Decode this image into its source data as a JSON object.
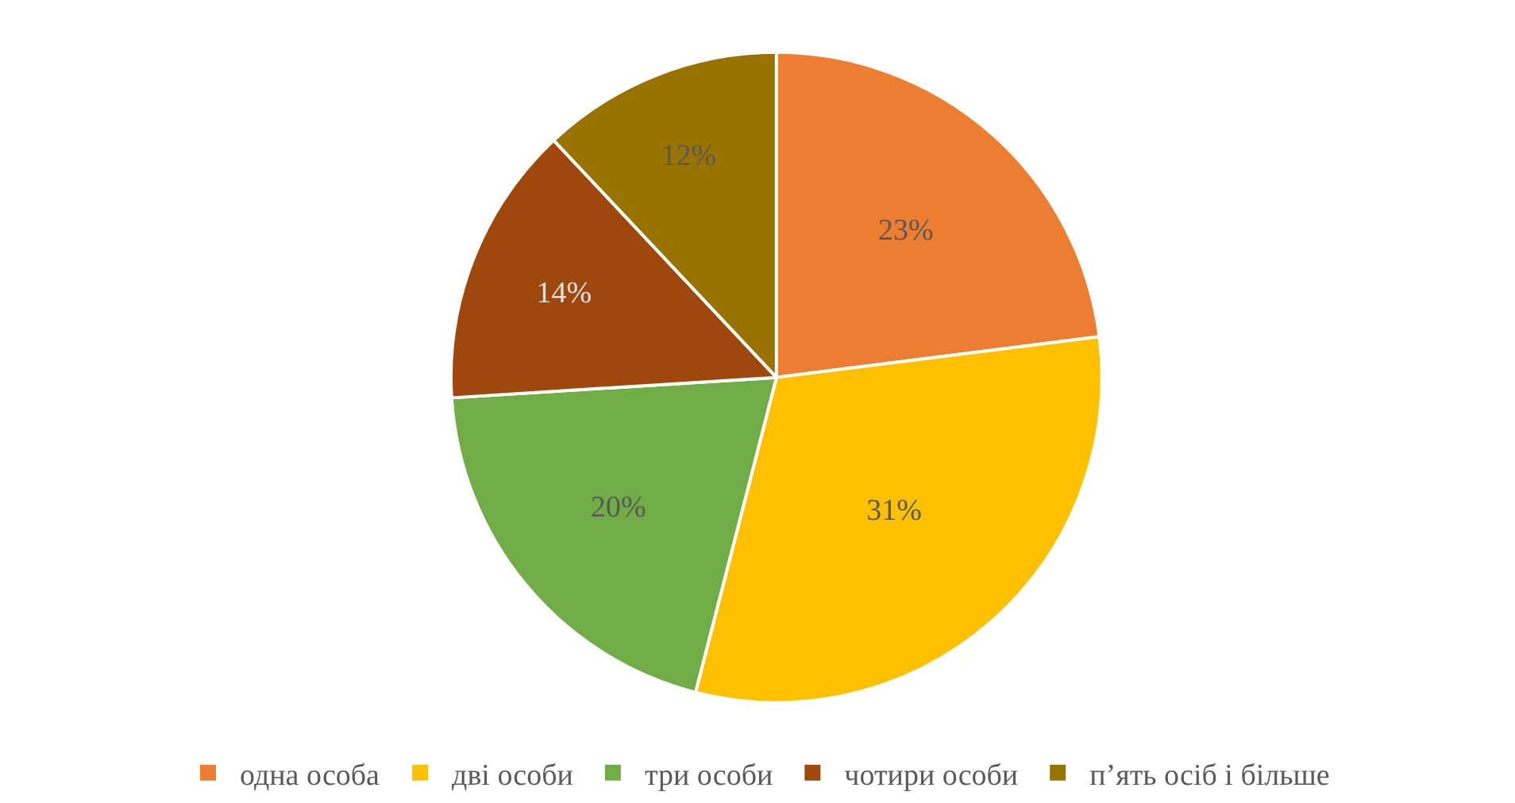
{
  "chart_data": {
    "type": "pie",
    "categories": [
      "одна особа",
      "дві особи",
      "три особи",
      "чотири особи",
      "п’ять осіб і більше"
    ],
    "values": [
      23,
      31,
      20,
      14,
      12
    ],
    "value_labels": [
      "23%",
      "31%",
      "20%",
      "14%",
      "12%"
    ],
    "colors": [
      "#ed7d31",
      "#ffc000",
      "#70ad47",
      "#9e480e",
      "#997300"
    ],
    "legend": "bottom"
  }
}
